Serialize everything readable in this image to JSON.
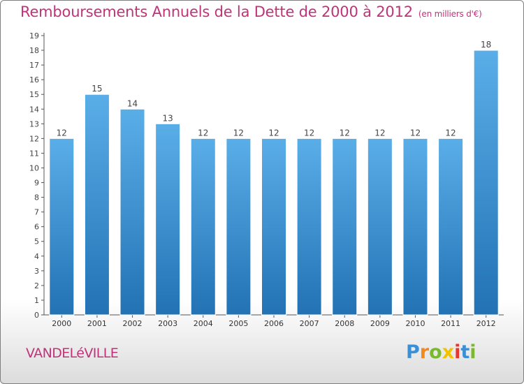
{
  "title": "Remboursements Annuels de la Dette de 2000 à 2012",
  "unit": "(en milliers d'€)",
  "commune": "VANDELéVILLE",
  "logo": {
    "letters": [
      "P",
      "r",
      "o",
      "x",
      "i",
      "t",
      "i"
    ],
    "colors": [
      "#3a8fd6",
      "#f28a1b",
      "#7ab82d",
      "#f2c200",
      "#e8352e",
      "#3a8fd6",
      "#7ab82d"
    ]
  },
  "colors": {
    "title": "#c0337a",
    "bar_light": "#5aaee8",
    "bar_dark": "#2272b4"
  },
  "chart_data": {
    "type": "bar",
    "categories": [
      "2000",
      "2001",
      "2002",
      "2003",
      "2004",
      "2005",
      "2006",
      "2007",
      "2008",
      "2009",
      "2010",
      "2011",
      "2012"
    ],
    "values": [
      12,
      15,
      14,
      13,
      12,
      12,
      12,
      12,
      12,
      12,
      12,
      12,
      18
    ],
    "data_labels": [
      "12",
      "15",
      "14",
      "13",
      "12",
      "12",
      "12",
      "12",
      "12",
      "12",
      "12",
      "12",
      "18"
    ],
    "yticks": [
      0,
      1,
      2,
      3,
      4,
      5,
      6,
      7,
      8,
      9,
      10,
      11,
      12,
      13,
      14,
      15,
      16,
      17,
      18,
      19
    ],
    "ylim": [
      0,
      19
    ],
    "grid": false,
    "legend": "none"
  }
}
